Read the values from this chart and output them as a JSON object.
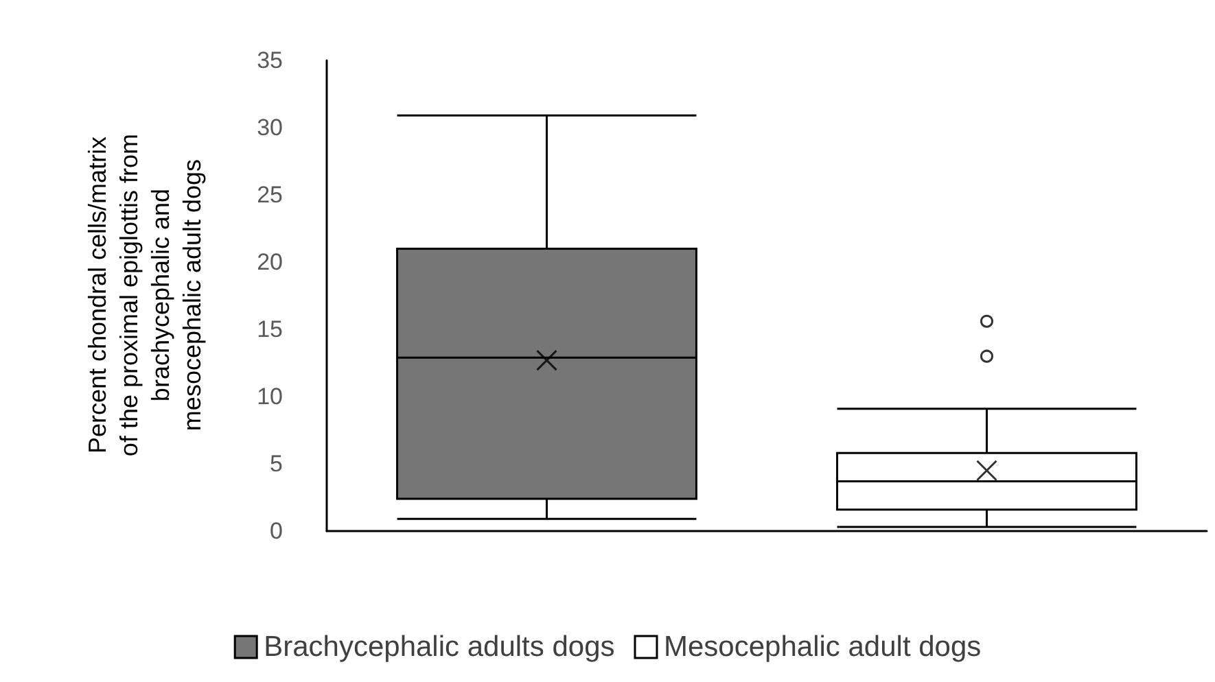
{
  "chart_data": {
    "type": "box",
    "ylabel": "Percent chondral cells/matrix  of the proximal epiglottis from brachycephalic and mesocephalic adult dogs",
    "categories": [
      null,
      null
    ],
    "series": [
      {
        "name": "Brachycephalic adults dogs",
        "color": "#767676",
        "boxes": [
          {
            "low": 0.9,
            "q1": 2.4,
            "median": 12.9,
            "q3": 21.0,
            "high": 30.9,
            "mean": 12.7
          },
          null
        ]
      },
      {
        "name": "Mesocephalic adult dogs",
        "color": "#ffffff",
        "boxes": [
          null,
          {
            "low": 0.3,
            "q1": 1.6,
            "median": 3.7,
            "q3": 5.8,
            "high": 9.1,
            "mean": 4.5,
            "outliers": [
              13.0,
              15.6
            ]
          }
        ]
      }
    ],
    "ylim": [
      0,
      35
    ],
    "yticks": [
      0,
      5,
      10,
      15,
      20,
      25,
      30,
      35
    ],
    "grid": false,
    "legend": "bottom"
  }
}
